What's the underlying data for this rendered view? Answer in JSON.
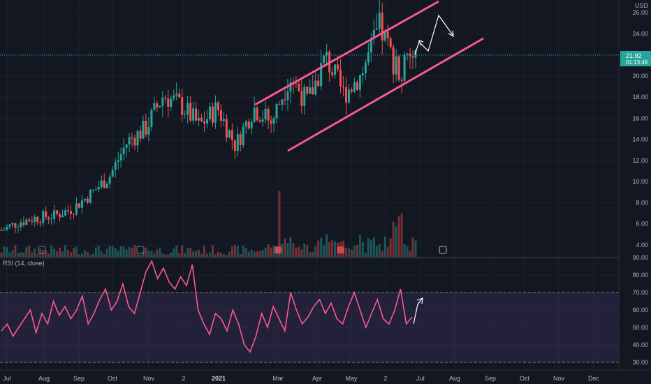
{
  "chart_data": {
    "type": "candlestick",
    "currency": "USD",
    "price_axis": {
      "ticks": [
        "26.00",
        "24.00",
        "22.00",
        "20.00",
        "18.00",
        "16.00",
        "14.00",
        "12.00",
        "10.00",
        "8.00",
        "6.00",
        "4.00"
      ],
      "ylim": [
        3.5,
        26.5
      ]
    },
    "last_price": {
      "value": "21.92",
      "countdown": "01:13:49"
    },
    "time_axis": {
      "labels": [
        "Jul",
        "Aug",
        "Sep",
        "Oct",
        "Nov",
        "2",
        "2021",
        "Mar",
        "Apr",
        "May",
        "2",
        "Jul",
        "Aug",
        "Sep",
        "Oct",
        "Nov",
        "Dec"
      ]
    },
    "price_series": [
      {
        "d": "2020-07",
        "v": 5.4
      },
      {
        "d": "2020-08",
        "v": 6.2
      },
      {
        "d": "2020-09",
        "v": 6.6
      },
      {
        "d": "2020-10",
        "v": 6.8
      },
      {
        "d": "2020-11",
        "v": 7.5
      },
      {
        "d": "2020-11-20",
        "v": 8.9
      },
      {
        "d": "2020-12",
        "v": 10.5
      },
      {
        "d": "2020-12-20",
        "v": 13.8
      },
      {
        "d": "2021-01",
        "v": 15.0
      },
      {
        "d": "2021-01-10",
        "v": 18.2
      },
      {
        "d": "2021-01-25",
        "v": 17.2
      },
      {
        "d": "2021-02-05",
        "v": 15.3
      },
      {
        "d": "2021-02-15",
        "v": 17.0
      },
      {
        "d": "2021-03-01",
        "v": 13.4
      },
      {
        "d": "2021-03-15",
        "v": 17.0
      },
      {
        "d": "2021-03-25",
        "v": 15.6
      },
      {
        "d": "2021-04-01",
        "v": 20.0
      },
      {
        "d": "2021-04-15",
        "v": 17.5
      },
      {
        "d": "2021-05-01",
        "v": 21.8
      },
      {
        "d": "2021-05-15",
        "v": 18.3
      },
      {
        "d": "2021-05-25",
        "v": 20.2
      },
      {
        "d": "2021-06-05",
        "v": 24.6
      },
      {
        "d": "2021-06-15",
        "v": 20.5
      },
      {
        "d": "2021-06-22",
        "v": 21.92
      }
    ],
    "rsi": {
      "label": "RSI (14, close)",
      "ticks": [
        "90.00",
        "80.00",
        "70.00",
        "60.00",
        "50.00",
        "40.00",
        "30.00"
      ],
      "ylim": [
        30,
        90
      ],
      "overbought": 70,
      "oversold": 30,
      "series": [
        48,
        52,
        45,
        50,
        55,
        60,
        47,
        58,
        52,
        65,
        57,
        62,
        55,
        60,
        68,
        52,
        58,
        66,
        72,
        60,
        65,
        75,
        62,
        58,
        70,
        82,
        88,
        78,
        84,
        76,
        72,
        79,
        74,
        86,
        60,
        52,
        46,
        58,
        55,
        48,
        60,
        52,
        40,
        36,
        45,
        58,
        50,
        62,
        55,
        48,
        70,
        60,
        52,
        56,
        62,
        66,
        58,
        64,
        55,
        52,
        62,
        70,
        60,
        50,
        58,
        66,
        55,
        52,
        60,
        72,
        52,
        56
      ]
    },
    "annotations": {
      "channel_upper_price": [
        17.1,
        26.7
      ],
      "channel_lower_price": [
        13.0,
        23.5
      ],
      "colors": {
        "channel": "#f75a8e",
        "up": "#26a69a",
        "down": "#ef5350",
        "rsi": "#f75a8e",
        "projection": "#ffffff",
        "last_price_tag": "#26a69a"
      }
    }
  }
}
